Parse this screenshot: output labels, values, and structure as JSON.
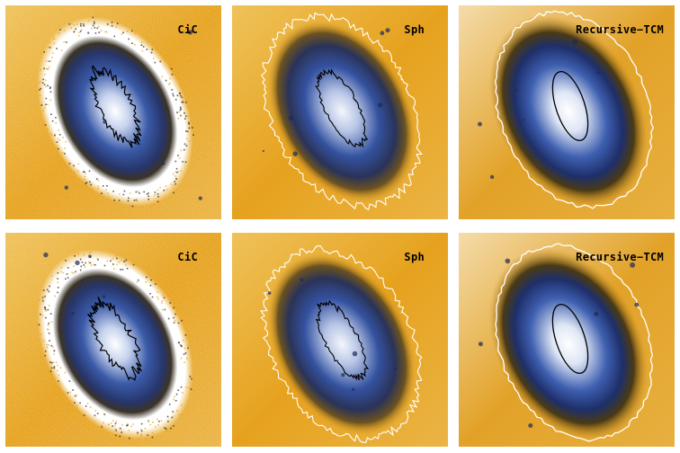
{
  "panels": [
    {
      "label": "CiC",
      "method": "cic",
      "row": 0
    },
    {
      "label": "Sph",
      "method": "sph",
      "row": 0
    },
    {
      "label": "Recursive−TCM",
      "method": "tcm",
      "row": 0
    },
    {
      "label": "CiC",
      "method": "cic",
      "row": 1
    },
    {
      "label": "Sph",
      "method": "sph",
      "row": 1
    },
    {
      "label": "Recursive−TCM",
      "method": "tcm",
      "row": 1
    }
  ],
  "colors": {
    "background_orange": "#e6a21e",
    "halo_blue": "#2b4d9c",
    "core_white": "#f2f4fa",
    "contour_white": "#ffffff",
    "contour_black": "#000000"
  }
}
